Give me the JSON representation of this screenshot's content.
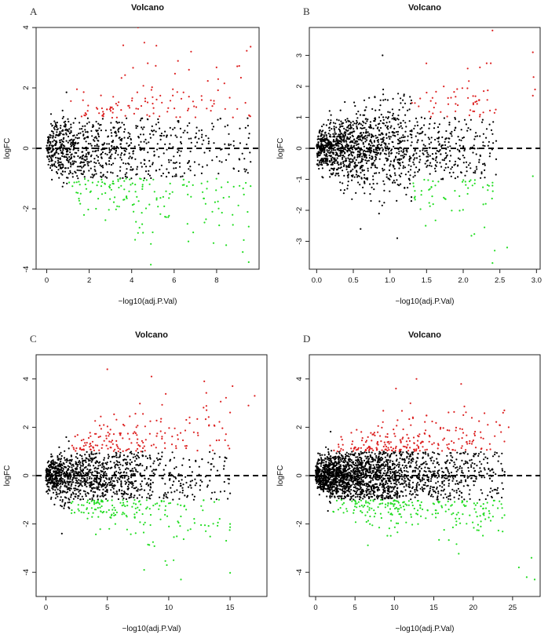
{
  "chart_data": [
    {
      "panel": "A",
      "type": "scatter",
      "title": "Volcano",
      "xlabel": "−log10(adj.P.Val)",
      "ylabel": "logFC",
      "xlim": [
        -0.5,
        10
      ],
      "ylim": [
        -4,
        4
      ],
      "xticks": [
        0,
        2,
        4,
        6,
        8
      ],
      "yticks": [
        -4,
        -2,
        0,
        2,
        4
      ],
      "hline": 0,
      "colors": {
        "up": "#dd2222",
        "down": "#22dd22",
        "ns": "#000000"
      },
      "gen": {
        "n": 1100,
        "xmax": 9.6,
        "k": 0.9,
        "spread": 1.35,
        "threshold": 1,
        "fcThr": 1,
        "seed": 11
      },
      "series": [
        {
          "name": "up",
          "x": [
            4.3,
            4.6,
            6.8,
            6.7,
            7.3
          ],
          "y": [
            4.0,
            3.5,
            3.2,
            2.6,
            1.6
          ]
        },
        {
          "name": "down",
          "x": [
            4.9,
            6.6,
            4.3
          ],
          "y": [
            -3.85,
            -1.25,
            -2.8
          ]
        },
        {
          "name": "ns",
          "x": [],
          "y": []
        }
      ]
    },
    {
      "panel": "B",
      "type": "scatter",
      "title": "Volcano",
      "xlabel": "−log10(adj.P.Val)",
      "ylabel": "logFC",
      "xlim": [
        -0.1,
        3.05
      ],
      "ylim": [
        -3.9,
        3.9
      ],
      "xticks": [
        0.0,
        0.5,
        1.0,
        1.5,
        2.0,
        2.5,
        3.0
      ],
      "yticks": [
        -3,
        -2,
        -1,
        0,
        1,
        2,
        3
      ],
      "hline": 0,
      "colors": {
        "up": "#dd2222",
        "down": "#22dd22",
        "ns": "#000000"
      },
      "gen": {
        "n": 1500,
        "xmax": 2.45,
        "k": 0.28,
        "spread": 0.9,
        "threshold": 1.3,
        "fcThr": 1,
        "seed": 23
      },
      "series": [
        {
          "name": "up",
          "x": [
            2.95,
            2.96,
            2.98,
            2.95,
            2.4
          ],
          "y": [
            3.1,
            2.3,
            1.9,
            1.7,
            3.8
          ]
        },
        {
          "name": "down",
          "x": [
            2.4,
            2.43,
            2.95,
            2.6
          ],
          "y": [
            -3.7,
            -3.3,
            -0.9,
            -3.2
          ]
        },
        {
          "name": "ns",
          "x": [
            0.6,
            1.1,
            0.9
          ],
          "y": [
            -2.6,
            -2.9,
            3.0
          ]
        }
      ]
    },
    {
      "panel": "C",
      "type": "scatter",
      "title": "Volcano",
      "xlabel": "−log10(adj.P.Val)",
      "ylabel": "logFC",
      "xlim": [
        -0.8,
        18
      ],
      "ylim": [
        -5,
        5
      ],
      "xticks": [
        0,
        5,
        10,
        15
      ],
      "yticks": [
        -4,
        -2,
        0,
        2,
        4
      ],
      "hline": 0,
      "colors": {
        "up": "#dd2222",
        "down": "#22dd22",
        "ns": "#000000"
      },
      "gen": {
        "n": 1500,
        "xmax": 15,
        "k": 1.6,
        "spread": 1.25,
        "threshold": 2,
        "fcThr": 1,
        "seed": 37
      },
      "series": [
        {
          "name": "up",
          "x": [
            5.0,
            8.6,
            12.9,
            15.2,
            17.0,
            16.5
          ],
          "y": [
            4.4,
            4.1,
            3.9,
            3.7,
            3.3,
            2.9
          ]
        },
        {
          "name": "down",
          "x": [
            11.0,
            8.0,
            10.4,
            15.0
          ],
          "y": [
            -4.3,
            -3.9,
            -3.5,
            -2.0
          ]
        },
        {
          "name": "ns",
          "x": [
            1.3
          ],
          "y": [
            -2.4
          ]
        }
      ]
    },
    {
      "panel": "D",
      "type": "scatter",
      "title": "Volcano",
      "xlabel": "−log10(adj.P.Val)",
      "ylabel": "logFC",
      "xlim": [
        -0.8,
        28.5
      ],
      "ylim": [
        -5,
        5
      ],
      "xticks": [
        0,
        5,
        10,
        15,
        20,
        25
      ],
      "yticks": [
        -4,
        -2,
        0,
        2,
        4
      ],
      "hline": 0,
      "colors": {
        "up": "#dd2222",
        "down": "#22dd22",
        "ns": "#000000"
      },
      "gen": {
        "n": 2500,
        "xmax": 24,
        "k": 2.2,
        "spread": 1.1,
        "threshold": 2.2,
        "fcThr": 1,
        "seed": 53
      },
      "series": [
        {
          "name": "up",
          "x": [
            12.8,
            10.2,
            23.8,
            24.5
          ],
          "y": [
            4.0,
            3.6,
            2.6,
            2.0
          ]
        },
        {
          "name": "down",
          "x": [
            26.8,
            27.8,
            25.8,
            27.4
          ],
          "y": [
            -4.2,
            -4.3,
            -3.8,
            -3.4
          ]
        },
        {
          "name": "ns",
          "x": [],
          "y": []
        }
      ]
    }
  ]
}
